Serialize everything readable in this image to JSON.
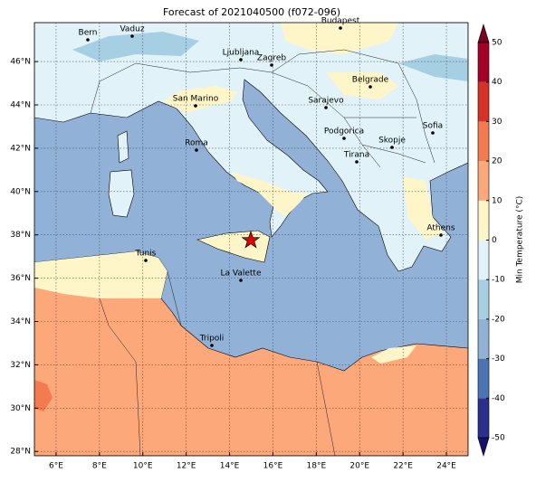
{
  "title": "Forecast of 2021040500 (f072-096)",
  "cities": [
    "Bern",
    "Vaduz",
    "Budapest",
    "Ljubljana",
    "Zagreb",
    "Belgrade",
    "San Marino",
    "Sarajevo",
    "Sofia",
    "Podgorica",
    "Skopje",
    "Roma",
    "Tirana",
    "Athens",
    "Tunis",
    "La Valette",
    "Tripoli"
  ],
  "map": {
    "xlim": [
      5,
      25
    ],
    "ylim": [
      27.8,
      47.8
    ],
    "grid": true,
    "xticks": [
      {
        "value": 6,
        "label": "6°E"
      },
      {
        "value": 8,
        "label": "8°E"
      },
      {
        "value": 10,
        "label": "10°E"
      },
      {
        "value": 12,
        "label": "12°E"
      },
      {
        "value": 14,
        "label": "14°E"
      },
      {
        "value": 16,
        "label": "16°E"
      },
      {
        "value": 18,
        "label": "18°E"
      },
      {
        "value": 20,
        "label": "20°E"
      },
      {
        "value": 22,
        "label": "22°E"
      },
      {
        "value": 24,
        "label": "24°E"
      }
    ],
    "yticks": [
      {
        "value": 28,
        "label": "28°N"
      },
      {
        "value": 30,
        "label": "30°N"
      },
      {
        "value": 32,
        "label": "32°N"
      },
      {
        "value": 34,
        "label": "34°N"
      },
      {
        "value": 36,
        "label": "36°N"
      },
      {
        "value": 38,
        "label": "38°N"
      },
      {
        "value": 40,
        "label": "40°N"
      },
      {
        "value": 42,
        "label": "42°N"
      },
      {
        "value": 44,
        "label": "44°N"
      },
      {
        "value": 46,
        "label": "46°N"
      }
    ]
  },
  "colorbar": {
    "label": "Min Temperature (°C)",
    "ticks": [
      -50,
      -40,
      -30,
      -20,
      -10,
      0,
      10,
      20,
      30,
      40,
      50
    ],
    "colors": [
      "#2a2f8c",
      "#4a74b3",
      "#92b1d6",
      "#a6cfe4",
      "#e1f3f8",
      "#fef6c8",
      "#fca87a",
      "#f47a50",
      "#d73027",
      "#a50026"
    ],
    "extend_colors": [
      "#15106b",
      "#7a0020"
    ]
  }
}
